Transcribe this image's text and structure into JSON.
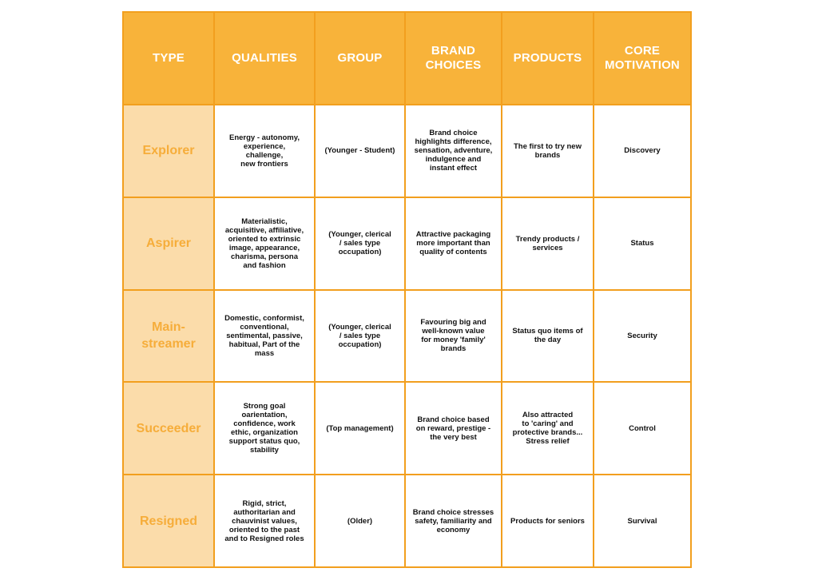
{
  "headers": [
    "TYPE",
    "QUALITIES",
    "GROUP",
    "BRAND\nCHOICES",
    "PRODUCTS",
    "CORE\nMOTIVATION"
  ],
  "rows": [
    {
      "type": "Explorer",
      "qualities": "Energy - autonomy,\nexperience,\nchallenge,\nnew frontiers",
      "group": "(Younger - Student)",
      "brand_choices": "Brand choice\nhighlights difference,\nsensation, adventure,\nindulgence and\ninstant effect",
      "products": "The first to try new\nbrands",
      "core_motivation": "Discovery"
    },
    {
      "type": "Aspirer",
      "qualities": "Materialistic,\nacquisitive, affiliative,\noriented to extrinsic\nimage, appearance,\ncharisma, persona\nand fashion",
      "group": "(Younger, clerical\n/ sales type\noccupation)",
      "brand_choices": "Attractive packaging\nmore important than\nquality of contents",
      "products": "Trendy products /\nservices",
      "core_motivation": "Status"
    },
    {
      "type": "Main-\nstreamer",
      "qualities": "Domestic, conformist,\nconventional,\nsentimental, passive,\nhabitual, Part of the\nmass",
      "group": "(Younger, clerical\n/ sales type\noccupation)",
      "brand_choices": "Favouring big and\nwell-known value\nfor money 'family'\nbrands",
      "products": "Status quo items of\nthe day",
      "core_motivation": "Security"
    },
    {
      "type": "Succeeder",
      "qualities": "Strong goal\noarientation,\nconfidence, work\nethic, organization\nsupport status quo,\nstability",
      "group": "(Top management)",
      "brand_choices": "Brand choice based\non reward, prestige -\nthe very best",
      "products": "Also attracted\nto 'caring' and\nprotective brands...\nStress relief",
      "core_motivation": "Control"
    },
    {
      "type": "Resigned",
      "qualities": "Rigid, strict,\nauthoritarian and\nchauvinist values,\noriented to the past\nand to Resigned roles",
      "group": "(Older)",
      "brand_choices": "Brand choice stresses\nsafety, familiarity and\neconomy",
      "products": "Products for seniors",
      "core_motivation": "Survival"
    }
  ]
}
